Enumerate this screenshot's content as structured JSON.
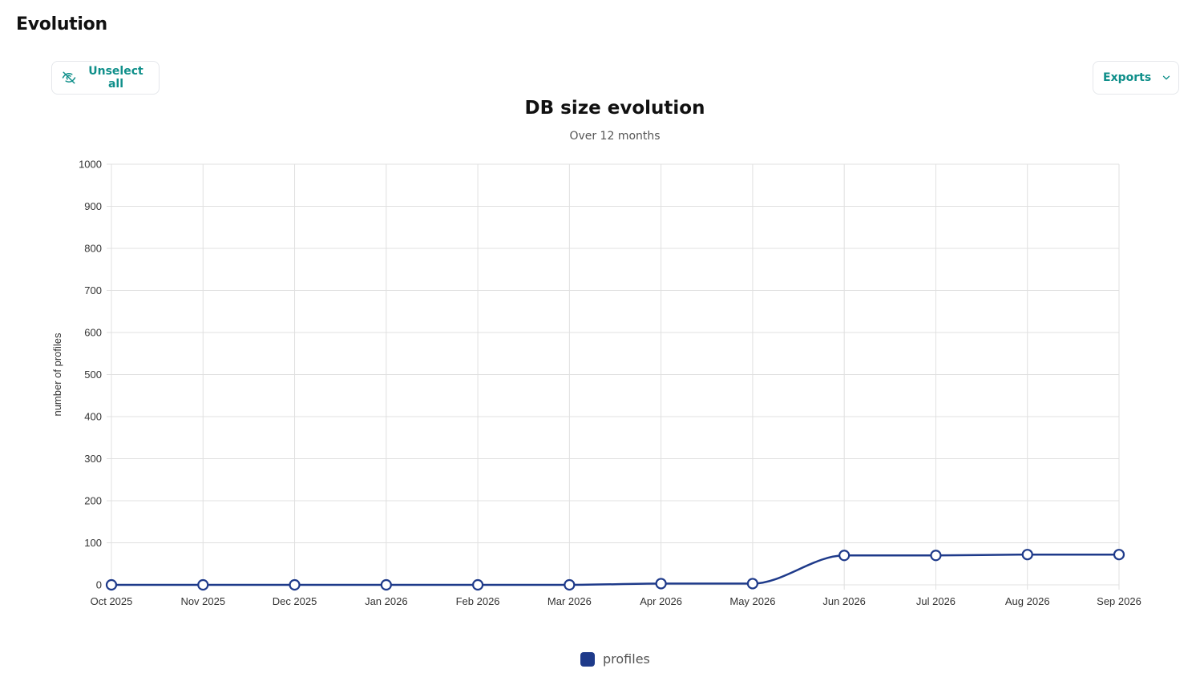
{
  "page": {
    "title": "Evolution"
  },
  "toolbar": {
    "unselect_label": "Unselect all",
    "unselect_icon": "eye-off-icon",
    "exports_label": "Exports",
    "exports_icon": "chevron-down-icon"
  },
  "colors": {
    "accent": "#0f8f8a",
    "series": "#1e3a8a",
    "grid": "#e0e0e0"
  },
  "chart_data": {
    "type": "line",
    "title": "DB size evolution",
    "subtitle": "Over 12 months",
    "xlabel": "",
    "ylabel": "number of profiles",
    "categories": [
      "Oct 2025",
      "Nov 2025",
      "Dec 2025",
      "Jan 2026",
      "Feb 2026",
      "Mar 2026",
      "Apr 2026",
      "May 2026",
      "Jun 2026",
      "Jul 2026",
      "Aug 2026",
      "Sep 2026"
    ],
    "ylim": [
      0,
      1000
    ],
    "yticks": [
      0,
      100,
      200,
      300,
      400,
      500,
      600,
      700,
      800,
      900,
      1000
    ],
    "grid": true,
    "legend_position": "bottom",
    "series": [
      {
        "name": "profiles",
        "values": [
          0,
          0,
          0,
          0,
          0,
          0,
          3,
          3,
          70,
          70,
          72,
          72
        ]
      }
    ]
  }
}
